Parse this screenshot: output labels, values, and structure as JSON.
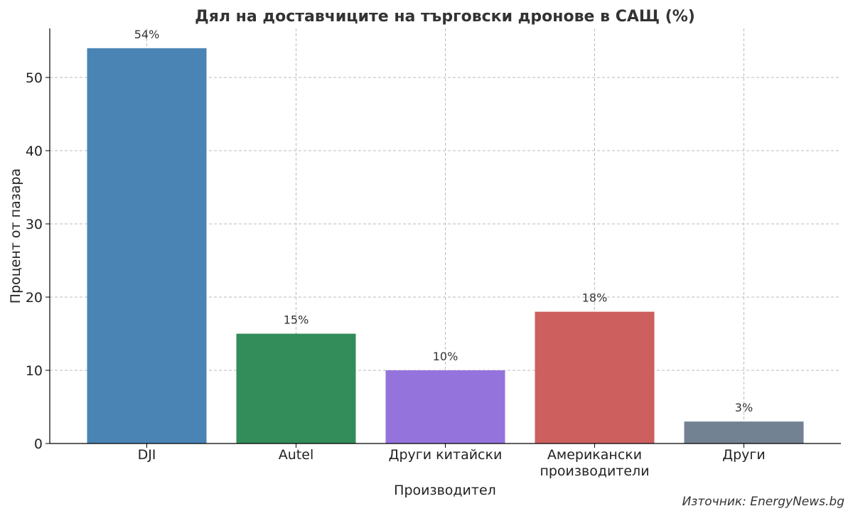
{
  "chart_data": {
    "type": "bar",
    "title": "Дял на доставчиците на търговски дронове в САЩ (%)",
    "xlabel": "Производител",
    "ylabel": "Процент от пазара",
    "categories": [
      [
        "DJI"
      ],
      [
        "Autel"
      ],
      [
        "Други китайски"
      ],
      [
        "Американски",
        "производители"
      ],
      [
        "Други"
      ]
    ],
    "values": [
      54,
      15,
      10,
      18,
      3
    ],
    "value_labels": [
      "54%",
      "15%",
      "10%",
      "18%",
      "3%"
    ],
    "colors": [
      "#4682b4",
      "#2e8b57",
      "#9370db",
      "#cd5c5c",
      "#708090"
    ],
    "ylim": [
      0,
      56.7
    ],
    "yticks": [
      0,
      10,
      20,
      30,
      40,
      50
    ],
    "grid": true
  },
  "source": "Източник: EnergyNews.bg"
}
